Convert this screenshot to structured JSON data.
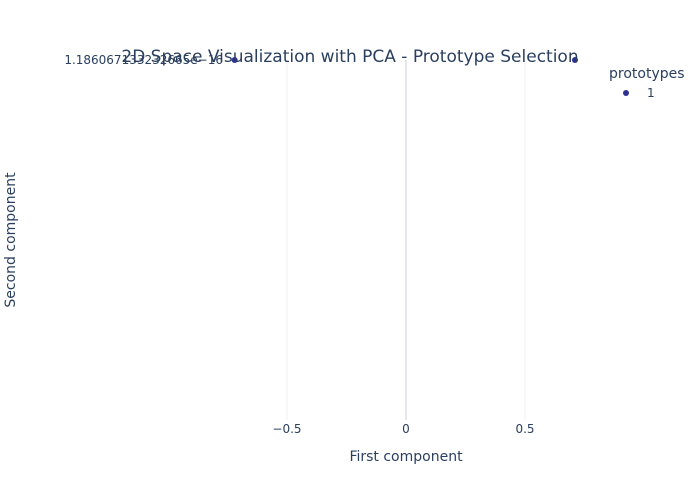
{
  "chart_data": {
    "type": "scatter",
    "title": "2D Space Visualization with PCA - Prototype Selection",
    "xlabel": "First component",
    "ylabel": "Second component",
    "xlim": [
      -1.0,
      1.0
    ],
    "x_ticks": [
      -0.5,
      0,
      0.5
    ],
    "x_tick_labels": [
      "−0.5",
      "0",
      "0.5"
    ],
    "y_tick_labels": [
      "1.186067133232665e−16"
    ],
    "grid": true,
    "legend": {
      "title": "prototypes",
      "placement": "top-right",
      "entries": [
        "1"
      ]
    },
    "series": [
      {
        "name": "1",
        "color": "#2e3192",
        "points": [
          {
            "x": -0.72,
            "y": 1.186067133232665e-16
          },
          {
            "x": 0.71,
            "y": 1.186067133232665e-16
          }
        ]
      }
    ]
  }
}
